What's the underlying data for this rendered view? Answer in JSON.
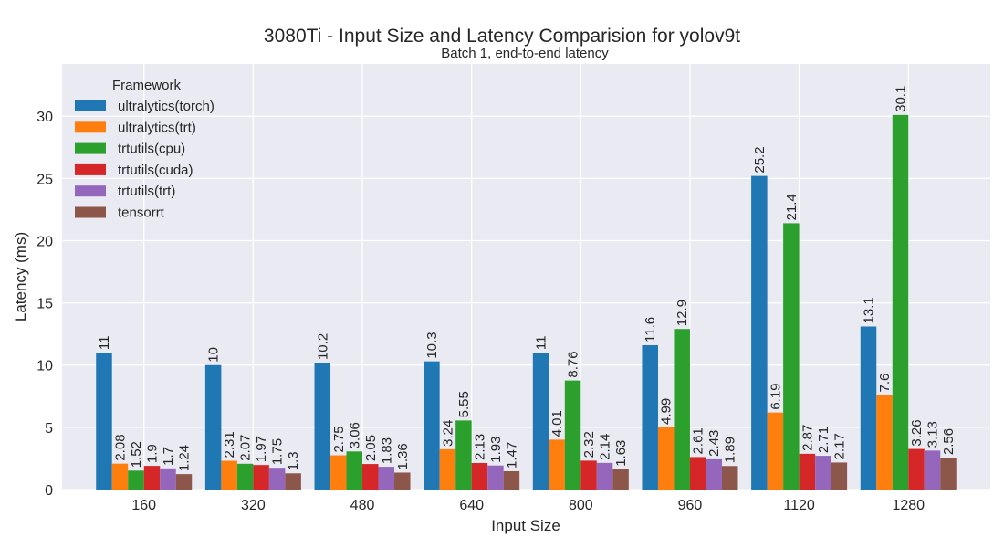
{
  "chart_data": {
    "type": "bar",
    "title": "3080Ti - Input Size and Latency Comparision for yolov9t",
    "subtitle": "Batch 1, end-to-end latency",
    "xlabel": "Input Size",
    "ylabel": "Latency (ms)",
    "categories": [
      "160",
      "320",
      "480",
      "640",
      "800",
      "960",
      "1120",
      "1280"
    ],
    "ylim": [
      0,
      34.2
    ],
    "yticks": [
      0,
      5,
      10,
      15,
      20,
      25,
      30
    ],
    "grid": true,
    "legend": {
      "title": "Framework",
      "placement": "top-left"
    },
    "series": [
      {
        "name": "ultralytics(torch)",
        "color": "#1f77b4",
        "values": [
          11,
          10,
          10.2,
          10.3,
          11,
          11.6,
          25.2,
          13.1
        ]
      },
      {
        "name": "ultralytics(trt)",
        "color": "#ff7f0e",
        "values": [
          2.08,
          2.31,
          2.75,
          3.24,
          4.01,
          4.99,
          6.19,
          7.6
        ]
      },
      {
        "name": "trtutils(cpu)",
        "color": "#2ca02c",
        "values": [
          1.52,
          2.07,
          3.06,
          5.55,
          8.76,
          12.9,
          21.4,
          30.1
        ]
      },
      {
        "name": "trtutils(cuda)",
        "color": "#d62728",
        "values": [
          1.9,
          1.97,
          2.05,
          2.13,
          2.32,
          2.61,
          2.87,
          3.26
        ]
      },
      {
        "name": "trtutils(trt)",
        "color": "#9467bd",
        "values": [
          1.7,
          1.75,
          1.83,
          1.93,
          2.14,
          2.43,
          2.71,
          3.13
        ]
      },
      {
        "name": "tensorrt",
        "color": "#8c564b",
        "values": [
          1.24,
          1.3,
          1.36,
          1.47,
          1.63,
          1.89,
          2.17,
          2.56
        ]
      }
    ]
  }
}
